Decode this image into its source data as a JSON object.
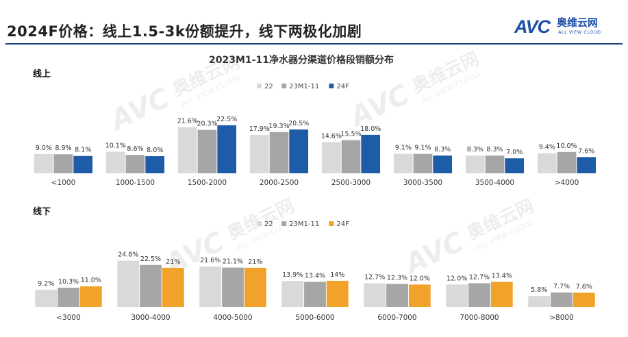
{
  "header": {
    "title": "2024F价格：线上1.5-3k份额提升，线下两极化加剧",
    "logo_mark": "AVC",
    "logo_cn": "奥维云网",
    "logo_en": "ALL VIEW CLOUD"
  },
  "watermark": {
    "cn": "奥维云网",
    "en": "ALL VIEW CLOUD"
  },
  "colors": {
    "s22": "#d9d9d9",
    "s23": "#a6a6a6",
    "online_24f": "#1f5ca8",
    "offline_24f": "#f0a22b",
    "rule": "#1f3f7a",
    "brand": "#1f4fa8"
  },
  "chart_data": [
    {
      "type": "bar",
      "title": "2023M1-11净水器分渠道价格段销额分布",
      "panel_label": "线上",
      "categories": [
        "<1000",
        "1000-1500",
        "1500-2000",
        "2000-2500",
        "2500-3000",
        "3000-3500",
        "3500-4000",
        ">4000"
      ],
      "series": [
        {
          "name": "22",
          "values": [
            9.0,
            10.1,
            21.6,
            17.9,
            14.6,
            9.1,
            8.3,
            9.4
          ],
          "labels": [
            "9.0%",
            "10.1%",
            "21.6%",
            "17.9%",
            "14.6%",
            "9.1%",
            "8.3%",
            "9.4%"
          ]
        },
        {
          "name": "23M1-11",
          "values": [
            8.9,
            8.6,
            20.3,
            19.3,
            15.5,
            9.1,
            8.3,
            10.0
          ],
          "labels": [
            "8.9%",
            "8.6%",
            "20.3%",
            "19.3%",
            "15.5%",
            "9.1%",
            "8.3%",
            "10.0%"
          ]
        },
        {
          "name": "24F",
          "values": [
            8.1,
            8.0,
            22.5,
            20.5,
            18.0,
            8.3,
            7.0,
            7.6
          ],
          "labels": [
            "8.1%",
            "8.0%",
            "22.5%",
            "20.5%",
            "18.0%",
            "8.3%",
            "7.0%",
            "7.6%"
          ]
        }
      ],
      "legend": "top-center",
      "unit": "%"
    },
    {
      "type": "bar",
      "panel_label": "线下",
      "categories": [
        "<3000",
        "3000-4000",
        "4000-5000",
        "5000-6000",
        "6000-7000",
        "7000-8000",
        ">8000"
      ],
      "series": [
        {
          "name": "22",
          "values": [
            9.2,
            24.8,
            21.6,
            13.9,
            12.7,
            12.0,
            5.8
          ],
          "labels": [
            "9.2%",
            "24.8%",
            "21.6%",
            "13.9%",
            "12.7%",
            "12.0%",
            "5.8%"
          ]
        },
        {
          "name": "23M1-11",
          "values": [
            10.3,
            22.5,
            21.1,
            13.4,
            12.3,
            12.7,
            7.7
          ],
          "labels": [
            "10.3%",
            "22.5%",
            "21.1%",
            "13.4%",
            "12.3%",
            "12.7%",
            "7.7%"
          ]
        },
        {
          "name": "24F",
          "values": [
            11.0,
            21,
            21,
            14,
            12.0,
            13.4,
            7.6
          ],
          "labels": [
            "11.0%",
            "21%",
            "21%",
            "14%",
            "12.0%",
            "13.4%",
            "7.6%"
          ]
        }
      ],
      "legend": "top-center",
      "unit": "%"
    }
  ]
}
